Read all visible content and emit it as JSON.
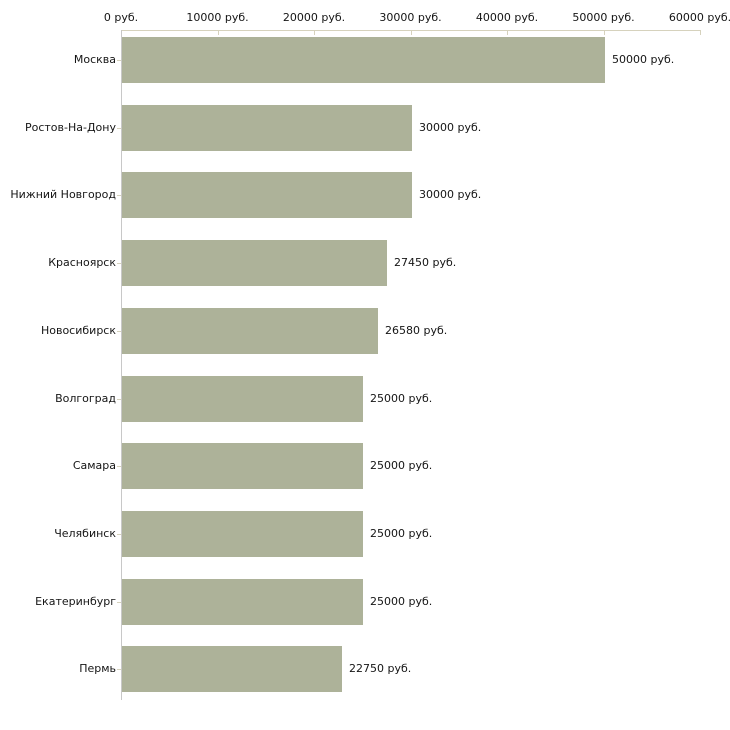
{
  "chart_data": {
    "type": "bar",
    "orientation": "horizontal",
    "title": "",
    "xlabel": "",
    "ylabel": "",
    "unit": "руб.",
    "categories": [
      "Москва",
      "Ростов-На-Дону",
      "Нижний Новгород",
      "Красноярск",
      "Новосибирск",
      "Волгоград",
      "Самара",
      "Челябинск",
      "Екатеринбург",
      "Пермь"
    ],
    "values": [
      50000,
      30000,
      30000,
      27450,
      26580,
      25000,
      25000,
      25000,
      25000,
      22750
    ],
    "value_labels": [
      "50000 руб.",
      "30000 руб.",
      "30000 руб.",
      "27450 руб.",
      "26580 руб.",
      "25000 руб.",
      "25000 руб.",
      "25000 руб.",
      "25000 руб.",
      "22750 руб."
    ],
    "xlim": [
      0,
      60000
    ],
    "x_ticks": [
      0,
      10000,
      20000,
      30000,
      40000,
      50000,
      60000
    ],
    "x_tick_labels": [
      "0 руб.",
      "10000 руб.",
      "20000 руб.",
      "30000 руб.",
      "40000 руб.",
      "50000 руб.",
      "60000 руб."
    ],
    "grid": false,
    "legend": false,
    "axis_position": "top",
    "bar_color": "#adb299",
    "x_axis_color": "#d6d2bd",
    "y_axis_color": "#c8c8c8",
    "text_color": "#151515"
  }
}
